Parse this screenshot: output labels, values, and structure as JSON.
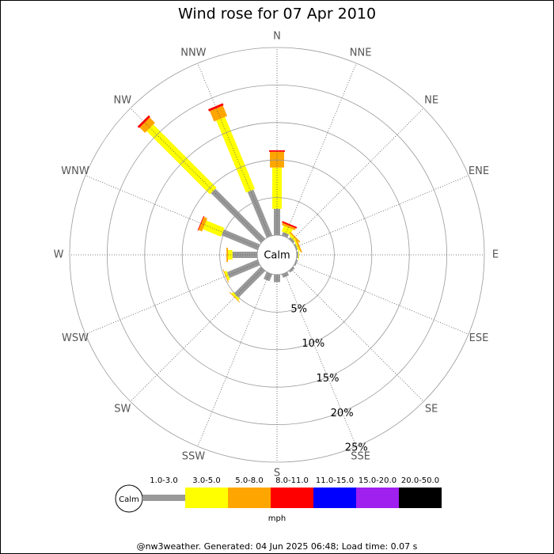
{
  "chart_data": {
    "type": "windrose",
    "title": "Wind rose for 07 Apr 2010",
    "directions": [
      "N",
      "NNE",
      "NE",
      "ENE",
      "E",
      "ESE",
      "SE",
      "SSE",
      "S",
      "SSW",
      "SW",
      "WSW",
      "W",
      "WNW",
      "NW",
      "NNW"
    ],
    "calm_label": "Calm",
    "rlim": [
      0,
      25
    ],
    "rticks": [
      {
        "value": 5,
        "label": "5%"
      },
      {
        "value": 10,
        "label": "10%"
      },
      {
        "value": 15,
        "label": "15%"
      },
      {
        "value": 20,
        "label": "20%"
      },
      {
        "value": 25,
        "label": "25%"
      }
    ],
    "unit": "mph",
    "series": [
      {
        "name": "1.0-3.0",
        "color": "#999999",
        "values": [
          3.5,
          0.5,
          0.3,
          0.2,
          0.2,
          0.2,
          0.3,
          0.5,
          1.0,
          1.0,
          5.0,
          4.4,
          3.3,
          5.2,
          9.4,
          6.6
        ]
      },
      {
        "name": "3.0-5.0",
        "color": "#ffff00",
        "values": [
          5.5,
          0.8,
          0.3,
          0.2,
          0.1,
          0,
          0,
          0,
          0,
          0,
          0.3,
          0.3,
          0.6,
          2.6,
          11.9,
          10.4
        ]
      },
      {
        "name": "5.0-8.0",
        "color": "#ffa500",
        "values": [
          2.1,
          0.3,
          0.2,
          0.2,
          0,
          0,
          0,
          0,
          0,
          0,
          0.1,
          0.1,
          0.2,
          0.5,
          1.0,
          1.5
        ]
      },
      {
        "name": "8.0-11.0",
        "color": "#ff0000",
        "values": [
          0.2,
          0.2,
          0,
          0,
          0,
          0,
          0,
          0,
          0,
          0,
          0,
          0,
          0,
          0.1,
          0.3,
          0.3
        ]
      },
      {
        "name": "11.0-15.0",
        "color": "#0000ff",
        "values": [
          0,
          0,
          0,
          0,
          0,
          0,
          0,
          0,
          0,
          0,
          0,
          0,
          0,
          0,
          0,
          0
        ]
      },
      {
        "name": "15.0-20.0",
        "color": "#a020f0",
        "values": [
          0,
          0,
          0,
          0,
          0,
          0,
          0,
          0,
          0,
          0,
          0,
          0,
          0,
          0,
          0,
          0
        ]
      },
      {
        "name": "20.0-50.0",
        "color": "#000000",
        "values": [
          0,
          0,
          0,
          0,
          0,
          0,
          0,
          0,
          0,
          0,
          0,
          0,
          0,
          0,
          0,
          0
        ]
      }
    ]
  },
  "footer": "@nw3weather. Generated: 04 Jun 2025 06:48; Load time: 0.07 s"
}
